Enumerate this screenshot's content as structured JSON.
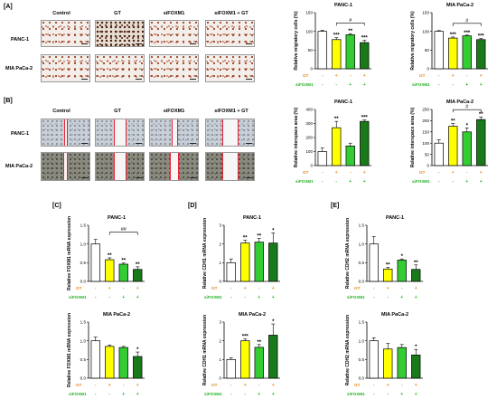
{
  "panel_labels": {
    "a": "[A]",
    "b": "[B]",
    "c": "[C]",
    "d": "[D]",
    "e": "[E]"
  },
  "image_columns": [
    "Control",
    "GT",
    "siFOXM1",
    "siFOXM1 + GT"
  ],
  "image_rows": [
    "PANC-1",
    "MIA PaCa-2"
  ],
  "colors": {
    "control": "#ffffff",
    "gt": "#ffff00",
    "sifoxm1": "#33cc33",
    "combo": "#1a7a1a",
    "gt_label": "#e8861a",
    "sifoxm1_label": "#22b022",
    "wound_line": "#dd2233"
  },
  "row_labels": {
    "gt": "GT",
    "sifoxm1": "siFOXM1"
  },
  "chart_data": [
    {
      "id": "a1",
      "type": "bar",
      "title": "PANC-1",
      "ylabel": "Relative migratory cells (%)",
      "ylim": [
        0,
        150
      ],
      "yticks": [
        0,
        50,
        100,
        150
      ],
      "values": [
        100,
        78,
        91,
        70
      ],
      "errors": [
        3,
        5,
        3,
        6
      ],
      "stars": [
        "",
        "***",
        "**",
        "***"
      ],
      "bracket": {
        "from": 1,
        "to": 3,
        "label": "#"
      },
      "gt": [
        "-",
        "+",
        "-",
        "+"
      ],
      "sifoxm1": [
        "-",
        "-",
        "+",
        "+"
      ]
    },
    {
      "id": "a2",
      "type": "bar",
      "title": "MIA PaCa-2",
      "ylabel": "Relative migratory cells (%)",
      "ylim": [
        0,
        150
      ],
      "yticks": [
        0,
        50,
        100,
        150
      ],
      "values": [
        100,
        82,
        88,
        78
      ],
      "errors": [
        2,
        3,
        2,
        3
      ],
      "stars": [
        "",
        "***",
        "***",
        "***"
      ],
      "bracket": {
        "from": 1,
        "to": 3,
        "label": "#"
      },
      "gt": [
        "-",
        "+",
        "-",
        "+"
      ],
      "sifoxm1": [
        "-",
        "-",
        "+",
        "+"
      ]
    },
    {
      "id": "b1",
      "type": "bar",
      "title": "PANC-1",
      "ylabel": "Relative interspace area (%)",
      "ylim": [
        0,
        400
      ],
      "yticks": [
        0,
        100,
        200,
        300,
        400
      ],
      "values": [
        100,
        270,
        140,
        315
      ],
      "errors": [
        25,
        45,
        20,
        10
      ],
      "stars": [
        "",
        "**",
        "",
        "***"
      ],
      "bracket": null,
      "gt": [
        "-",
        "+",
        "-",
        "+"
      ],
      "sifoxm1": [
        "-",
        "-",
        "+",
        "+"
      ]
    },
    {
      "id": "b2",
      "type": "bar",
      "title": "MIA PaCa-2",
      "ylabel": "Relative interspace area (%)",
      "ylim": [
        0,
        250
      ],
      "yticks": [
        0,
        50,
        100,
        150,
        200,
        250
      ],
      "values": [
        100,
        175,
        150,
        205
      ],
      "errors": [
        15,
        12,
        18,
        12
      ],
      "stars": [
        "",
        "**",
        "*",
        "**"
      ],
      "bracket": {
        "from": 1,
        "to": 3,
        "label": "#"
      },
      "gt": [
        "-",
        "+",
        "-",
        "+"
      ],
      "sifoxm1": [
        "-",
        "-",
        "+",
        "+"
      ]
    },
    {
      "id": "c1",
      "type": "bar",
      "title": "PANC-1",
      "ylabel": "Relative FOXM1 mRNA expression",
      "ylim": [
        0,
        1.5
      ],
      "yticks": [
        0.0,
        0.5,
        1.0,
        1.5
      ],
      "values": [
        1.0,
        0.58,
        0.46,
        0.32
      ],
      "errors": [
        0.12,
        0.05,
        0.03,
        0.07
      ],
      "stars": [
        "",
        "**",
        "**",
        "**"
      ],
      "bracket": {
        "from": 1,
        "to": 3,
        "label": "##"
      },
      "gt": [
        "-",
        "+",
        "-",
        "+"
      ],
      "sifoxm1": [
        "-",
        "-",
        "+",
        "+"
      ]
    },
    {
      "id": "d1",
      "type": "bar",
      "title": "PANC-1",
      "ylabel": "Relative CDH1 mRNA expression",
      "ylim": [
        0,
        3
      ],
      "yticks": [
        0,
        1,
        2,
        3
      ],
      "values": [
        1.0,
        2.05,
        2.1,
        2.05
      ],
      "errors": [
        0.2,
        0.15,
        0.2,
        0.55
      ],
      "stars": [
        "",
        "**",
        "**",
        "*"
      ],
      "bracket": null,
      "gt": [
        "-",
        "+",
        "-",
        "+"
      ],
      "sifoxm1": [
        "-",
        "-",
        "+",
        "+"
      ]
    },
    {
      "id": "e1",
      "type": "bar",
      "title": "PANC-1",
      "ylabel": "Relative CDH2 mRNA expression",
      "ylim": [
        0,
        1.5
      ],
      "yticks": [
        0.0,
        0.5,
        1.0,
        1.5
      ],
      "values": [
        1.0,
        0.33,
        0.57,
        0.32
      ],
      "errors": [
        0.2,
        0.05,
        0.03,
        0.12
      ],
      "stars": [
        "",
        "**",
        "*",
        "**"
      ],
      "bracket": null,
      "gt": [
        "-",
        "+",
        "-",
        "+"
      ],
      "sifoxm1": [
        "-",
        "-",
        "+",
        "+"
      ]
    },
    {
      "id": "c2",
      "type": "bar",
      "title": "MIA PaCa-2",
      "ylabel": "Relative FOXM1 mRNA expression",
      "ylim": [
        0,
        1.5
      ],
      "yticks": [
        0.0,
        0.5,
        1.0,
        1.5
      ],
      "values": [
        1.0,
        0.85,
        0.82,
        0.58
      ],
      "errors": [
        0.1,
        0.04,
        0.03,
        0.12
      ],
      "stars": [
        "",
        "",
        "",
        "*"
      ],
      "bracket": null,
      "gt": [
        "-",
        "+",
        "-",
        "+"
      ],
      "sifoxm1": [
        "-",
        "-",
        "+",
        "+"
      ]
    },
    {
      "id": "d2",
      "type": "bar",
      "title": "MIA PaCa-2",
      "ylabel": "Relative CDH1 mRNA expression",
      "ylim": [
        0,
        3
      ],
      "yticks": [
        0,
        1,
        2,
        3
      ],
      "values": [
        1.0,
        2.0,
        1.65,
        2.3
      ],
      "errors": [
        0.1,
        0.1,
        0.15,
        0.6
      ],
      "stars": [
        "",
        "***",
        "**",
        "*"
      ],
      "bracket": null,
      "gt": [
        "-",
        "+",
        "-",
        "+"
      ],
      "sifoxm1": [
        "-",
        "-",
        "+",
        "+"
      ]
    },
    {
      "id": "e2",
      "type": "bar",
      "title": "MIA PaCa-2",
      "ylabel": "Relative CDH2 mRNA expression",
      "ylim": [
        0,
        1.5
      ],
      "yticks": [
        0.0,
        0.5,
        1.0,
        1.5
      ],
      "values": [
        1.0,
        0.78,
        0.82,
        0.62
      ],
      "errors": [
        0.08,
        0.15,
        0.08,
        0.15
      ],
      "stars": [
        "",
        "",
        "",
        "*"
      ],
      "bracket": null,
      "gt": [
        "-",
        "+",
        "-",
        "+"
      ],
      "sifoxm1": [
        "-",
        "-",
        "+",
        "+"
      ]
    }
  ]
}
